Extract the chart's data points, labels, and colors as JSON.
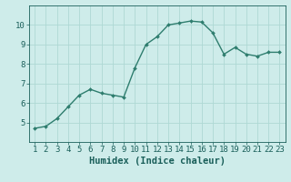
{
  "x": [
    1,
    2,
    3,
    4,
    5,
    6,
    7,
    8,
    9,
    10,
    11,
    12,
    13,
    14,
    15,
    16,
    17,
    18,
    19,
    20,
    21,
    22,
    23
  ],
  "y": [
    4.7,
    4.8,
    5.2,
    5.8,
    6.4,
    6.7,
    6.5,
    6.4,
    6.3,
    7.8,
    9.0,
    9.4,
    10.0,
    10.1,
    10.2,
    10.15,
    9.6,
    8.5,
    8.85,
    8.5,
    8.4,
    8.6,
    8.6
  ],
  "line_color": "#2e7d6e",
  "marker": "D",
  "marker_size": 2.0,
  "line_width": 1.0,
  "bg_color": "#ceecea",
  "grid_color": "#aed8d4",
  "xlabel": "Humidex (Indice chaleur)",
  "xlabel_color": "#1a5f5a",
  "tick_color": "#1a5f5a",
  "ylim": [
    4,
    11
  ],
  "xlim": [
    0.5,
    23.5
  ],
  "yticks": [
    5,
    6,
    7,
    8,
    9,
    10
  ],
  "xticks": [
    1,
    2,
    3,
    4,
    5,
    6,
    7,
    8,
    9,
    10,
    11,
    12,
    13,
    14,
    15,
    16,
    17,
    18,
    19,
    20,
    21,
    22,
    23
  ],
  "xlabel_fontsize": 7.5,
  "tick_fontsize": 6.5
}
